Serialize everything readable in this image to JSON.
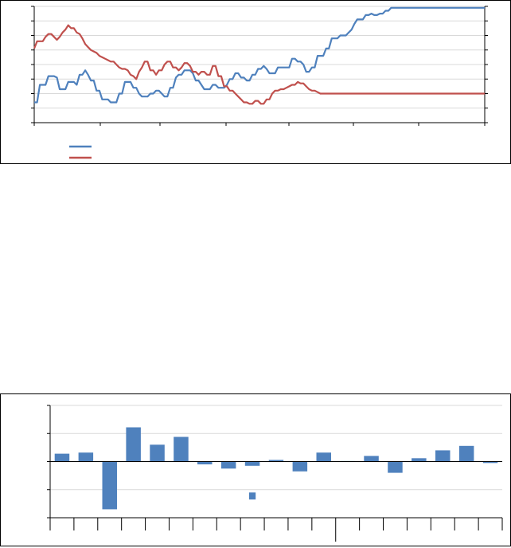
{
  "chart_data": [
    {
      "type": "line",
      "title": "",
      "xlabel": "",
      "ylabel": "",
      "y_left_range": [
        0,
        8
      ],
      "y_right_range": [
        0,
        8
      ],
      "grid": true,
      "legend_position": "bottom-left",
      "x_points": 160,
      "series": [
        {
          "axis": "left",
          "color": "#4F81BD",
          "values": [
            1.4,
            1.4,
            2.6,
            2.6,
            2.6,
            3.2,
            3.2,
            3.2,
            3.1,
            2.3,
            2.3,
            2.3,
            2.8,
            2.8,
            2.8,
            2.6,
            3.3,
            3.3,
            3.6,
            3.3,
            2.9,
            2.9,
            2.2,
            2.2,
            1.6,
            1.6,
            1.6,
            1.4,
            1.4,
            1.4,
            2.0,
            2.0,
            2.8,
            2.8,
            2.8,
            2.4,
            2.4,
            2.0,
            1.8,
            1.8,
            1.8,
            2.0,
            2.0,
            2.2,
            2.2,
            2.0,
            1.8,
            1.8,
            2.4,
            2.4,
            3.1,
            3.3,
            3.3,
            3.6,
            3.6,
            3.6,
            3.4,
            2.9,
            2.9,
            2.6,
            2.3,
            2.3,
            2.3,
            2.6,
            2.6,
            2.4,
            2.4,
            2.4,
            2.6,
            3.0,
            3.0,
            3.4,
            3.4,
            3.1,
            3.1,
            2.9,
            2.9,
            3.3,
            3.3,
            3.7,
            3.7,
            3.9,
            3.7,
            3.4,
            3.4,
            3.4,
            3.8,
            3.8,
            3.8,
            3.8,
            3.8,
            4.4,
            4.4,
            4.2,
            4.2,
            4.0,
            3.5,
            3.5,
            3.8,
            3.8,
            4.6,
            4.6,
            4.6,
            5.1,
            5.1,
            5.8,
            5.8,
            5.8,
            6.0,
            6.0,
            6.0,
            6.2,
            6.4,
            6.8,
            7.1,
            7.1,
            7.1,
            7.4,
            7.4,
            7.5,
            7.4,
            7.4,
            7.5,
            7.5,
            7.7,
            7.7,
            7.9,
            7.9,
            7.9,
            7.9,
            7.9,
            7.9,
            7.9,
            7.9,
            7.9,
            7.9,
            7.9,
            7.9,
            7.9,
            7.9,
            7.9,
            7.9,
            7.9,
            7.9,
            7.9,
            7.9,
            7.9,
            7.9,
            7.9,
            7.9,
            7.9,
            7.9,
            7.9,
            7.9,
            7.9,
            7.9,
            7.9,
            7.9,
            7.9,
            7.9
          ]
        },
        {
          "axis": "right",
          "color": "#C0504D",
          "values": [
            5.1,
            5.6,
            5.6,
            5.6,
            5.9,
            6.1,
            6.1,
            5.9,
            5.7,
            5.9,
            6.2,
            6.4,
            6.7,
            6.5,
            6.5,
            6.2,
            6.1,
            5.8,
            5.4,
            5.2,
            5.0,
            4.9,
            4.8,
            4.6,
            4.5,
            4.4,
            4.3,
            4.2,
            4.2,
            4.0,
            3.8,
            3.7,
            3.7,
            3.6,
            3.3,
            3.2,
            3.0,
            3.5,
            3.8,
            4.2,
            4.2,
            3.6,
            3.6,
            3.3,
            3.6,
            3.6,
            4.0,
            4.2,
            4.2,
            3.8,
            3.8,
            3.6,
            3.8,
            4.1,
            4.1,
            3.9,
            3.5,
            3.5,
            3.3,
            3.5,
            3.5,
            3.3,
            3.3,
            3.9,
            3.9,
            3.2,
            3.2,
            2.5,
            2.5,
            2.2,
            2.2,
            2.0,
            1.8,
            1.6,
            1.4,
            1.4,
            1.3,
            1.3,
            1.5,
            1.5,
            1.3,
            1.3,
            1.6,
            1.6,
            2.0,
            2.2,
            2.2,
            2.3,
            2.3,
            2.4,
            2.5,
            2.6,
            2.6,
            2.8,
            2.7,
            2.7,
            2.5,
            2.3,
            2.2,
            2.2,
            2.1,
            2.0,
            2.0,
            2.0,
            2.0,
            2.0,
            2.0,
            2.0,
            2.0,
            2.0,
            2.0,
            2.0,
            2.0,
            2.0,
            2.0,
            2.0,
            2.0,
            2.0,
            2.0,
            2.0,
            2.0,
            2.0,
            2.0,
            2.0,
            2.0,
            2.0,
            2.0,
            2.0,
            2.0,
            2.0,
            2.0,
            2.0,
            2.0,
            2.0,
            2.0,
            2.0,
            2.0,
            2.0,
            2.0,
            2.0,
            2.0,
            2.0,
            2.0,
            2.0,
            2.0,
            2.0,
            2.0,
            2.0,
            2.0,
            2.0,
            2.0,
            2.0,
            2.0,
            2.0,
            2.0,
            2.0,
            2.0,
            2.0,
            2.0,
            2.0
          ]
        }
      ]
    },
    {
      "type": "bar",
      "title": "",
      "xlabel": "",
      "ylabel": "",
      "ylim": [
        -2,
        2
      ],
      "grid": true,
      "color": "#4F81BD",
      "values": [
        0.28,
        0.32,
        -1.7,
        1.22,
        0.6,
        0.88,
        -0.1,
        -0.25,
        -0.15,
        0.06,
        -0.35,
        0.32,
        0.02,
        0.2,
        -0.4,
        0.12,
        0.4,
        0.56,
        -0.05
      ],
      "extra_marks": [
        {
          "index": 8,
          "low": -1.35,
          "high": -1.1
        }
      ]
    }
  ]
}
